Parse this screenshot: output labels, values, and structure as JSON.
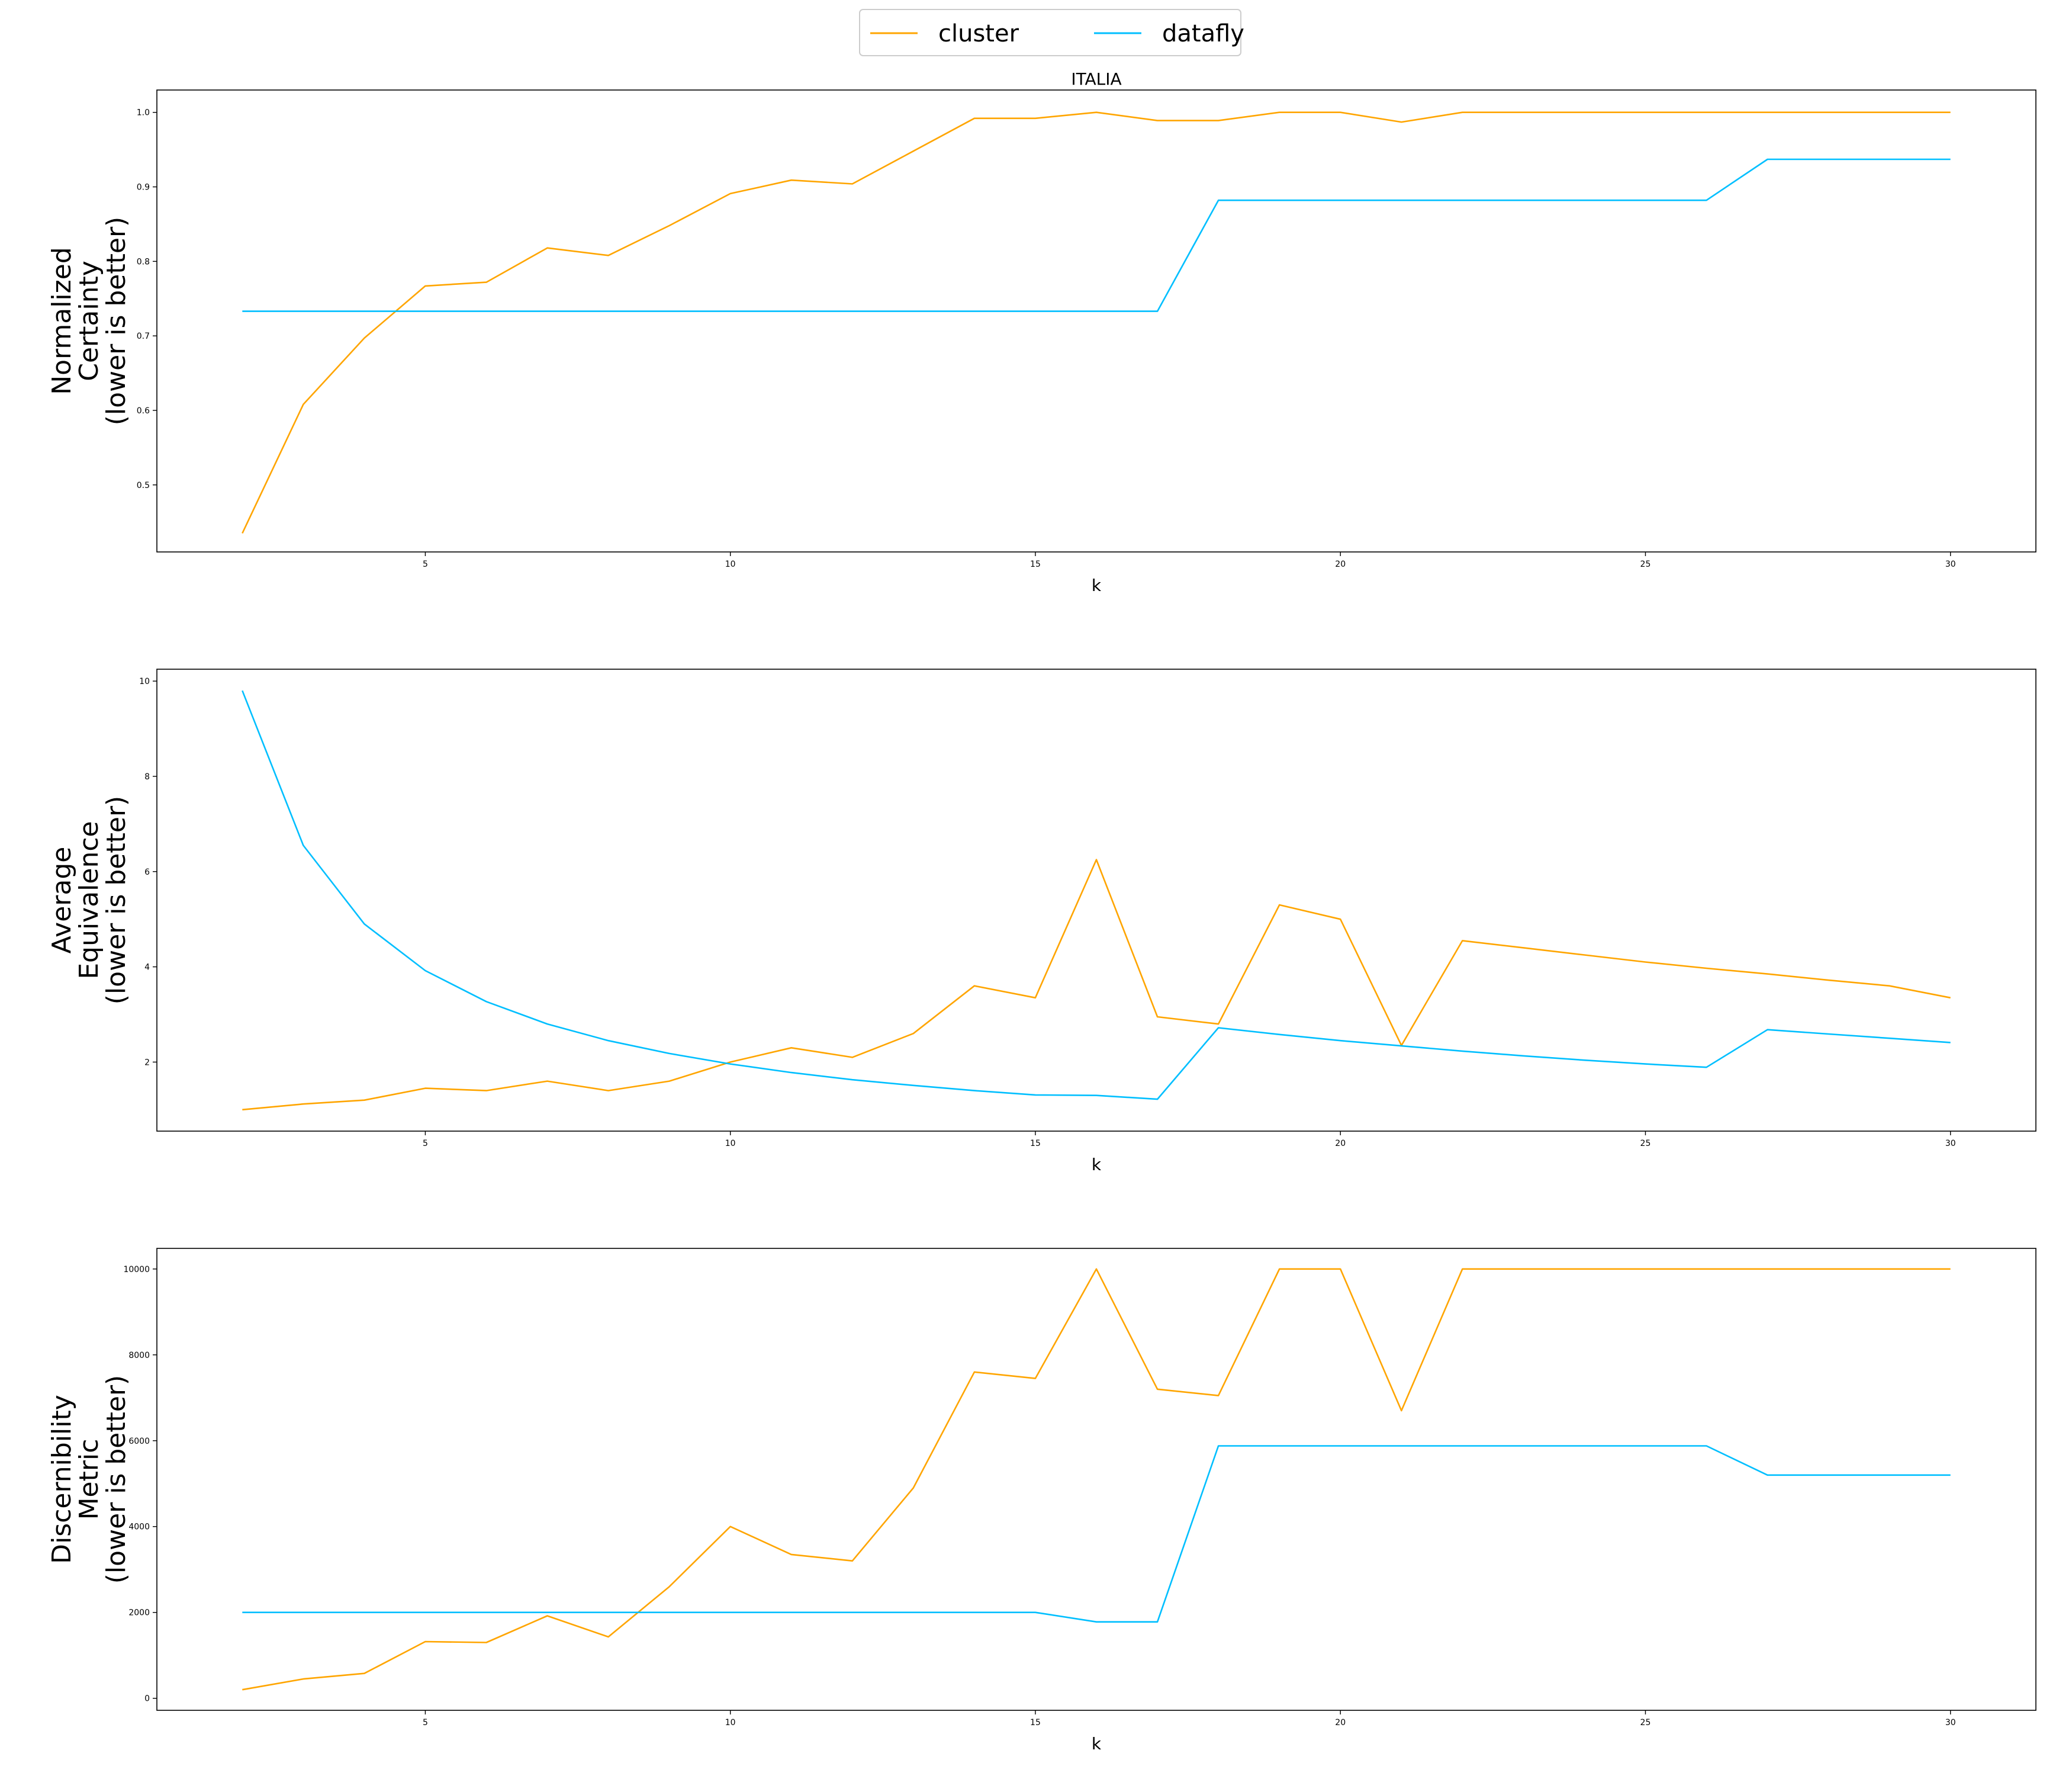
{
  "title": "ITALIA",
  "legend": {
    "placement": "top-center",
    "entries": [
      {
        "label": "cluster",
        "color": "#FFA500"
      },
      {
        "label": "datafly",
        "color": "#00BFFF"
      }
    ]
  },
  "colors": {
    "cluster": "#FFA500",
    "datafly": "#00BFFF"
  },
  "chart_data": [
    {
      "type": "line",
      "title": "ITALIA",
      "xlabel": "k",
      "ylabel": [
        "Normalized",
        "Certainty",
        "(lower is better)"
      ],
      "xlim": [
        0.6,
        31.4
      ],
      "ylim": [
        0.41,
        1.03
      ],
      "xticks": [
        5,
        10,
        15,
        20,
        25,
        30
      ],
      "yticks": [
        0.5,
        0.6,
        0.7,
        0.8,
        0.9,
        1.0
      ],
      "ytick_labels": [
        "0.5",
        "0.6",
        "0.7",
        "0.8",
        "0.9",
        "1.0"
      ],
      "grid": false,
      "x": [
        2,
        3,
        4,
        5,
        6,
        7,
        8,
        9,
        10,
        11,
        12,
        13,
        14,
        15,
        16,
        17,
        18,
        19,
        20,
        21,
        22,
        23,
        24,
        25,
        26,
        27,
        28,
        29,
        30
      ],
      "series": [
        {
          "name": "cluster",
          "color": "#FFA500",
          "values": [
            0.435,
            0.608,
            0.697,
            0.767,
            0.772,
            0.818,
            0.808,
            0.848,
            0.891,
            0.909,
            0.904,
            0.948,
            0.992,
            0.992,
            1.0,
            0.989,
            0.989,
            1.0,
            1.0,
            0.987,
            1.0,
            1.0,
            1.0,
            1.0,
            1.0,
            1.0,
            1.0,
            1.0,
            1.0
          ]
        },
        {
          "name": "datafly",
          "color": "#00BFFF",
          "values": [
            0.733,
            0.733,
            0.733,
            0.733,
            0.733,
            0.733,
            0.733,
            0.733,
            0.733,
            0.733,
            0.733,
            0.733,
            0.733,
            0.733,
            0.733,
            0.733,
            0.882,
            0.882,
            0.882,
            0.882,
            0.882,
            0.882,
            0.882,
            0.882,
            0.882,
            0.937,
            0.937,
            0.937,
            0.937
          ]
        }
      ]
    },
    {
      "type": "line",
      "xlabel": "k",
      "ylabel": [
        "Average",
        "Equivalence",
        "(lower is better)"
      ],
      "xlim": [
        0.6,
        31.4
      ],
      "ylim": [
        0.55,
        10.25
      ],
      "xticks": [
        5,
        10,
        15,
        20,
        25,
        30
      ],
      "yticks": [
        2,
        4,
        6,
        8,
        10
      ],
      "ytick_labels": [
        "2",
        "4",
        "6",
        "8",
        "10"
      ],
      "grid": false,
      "x": [
        2,
        3,
        4,
        5,
        6,
        7,
        8,
        9,
        10,
        11,
        12,
        13,
        14,
        15,
        16,
        17,
        18,
        19,
        20,
        21,
        22,
        23,
        24,
        25,
        26,
        27,
        28,
        29,
        30
      ],
      "series": [
        {
          "name": "cluster",
          "color": "#FFA500",
          "values": [
            1.0,
            1.12,
            1.2,
            1.45,
            1.4,
            1.6,
            1.4,
            1.6,
            2.0,
            2.3,
            2.1,
            2.6,
            3.6,
            3.35,
            6.25,
            2.95,
            2.8,
            5.3,
            5.0,
            2.35,
            4.55,
            4.4,
            4.25,
            4.1,
            3.97,
            3.85,
            3.72,
            3.6,
            3.35
          ]
        },
        {
          "name": "datafly",
          "color": "#00BFFF",
          "values": [
            9.8,
            6.55,
            4.9,
            3.92,
            3.27,
            2.8,
            2.45,
            2.18,
            1.96,
            1.78,
            1.63,
            1.51,
            1.4,
            1.31,
            1.3,
            1.22,
            2.72,
            2.58,
            2.45,
            2.34,
            2.23,
            2.13,
            2.04,
            1.96,
            1.89,
            2.68,
            2.59,
            2.5,
            2.41
          ]
        }
      ]
    },
    {
      "type": "line",
      "xlabel": "k",
      "ylabel": [
        "Discernibility",
        "Metric",
        "(lower is better)"
      ],
      "xlim": [
        0.6,
        31.4
      ],
      "ylim": [
        -280,
        10480
      ],
      "xticks": [
        5,
        10,
        15,
        20,
        25,
        30
      ],
      "yticks": [
        0,
        2000,
        4000,
        6000,
        8000,
        10000
      ],
      "ytick_labels": [
        "0",
        "2000",
        "4000",
        "6000",
        "8000",
        "10000"
      ],
      "grid": false,
      "x": [
        2,
        3,
        4,
        5,
        6,
        7,
        8,
        9,
        10,
        11,
        12,
        13,
        14,
        15,
        16,
        17,
        18,
        19,
        20,
        21,
        22,
        23,
        24,
        25,
        26,
        27,
        28,
        29,
        30
      ],
      "series": [
        {
          "name": "cluster",
          "color": "#FFA500",
          "values": [
            200,
            450,
            580,
            1320,
            1300,
            1920,
            1430,
            2600,
            4000,
            3350,
            3200,
            4900,
            7600,
            7450,
            10000,
            7200,
            7050,
            10000,
            10000,
            6700,
            10000,
            10000,
            10000,
            10000,
            10000,
            10000,
            10000,
            10000,
            10000
          ]
        },
        {
          "name": "datafly",
          "color": "#00BFFF",
          "values": [
            2000,
            2000,
            2000,
            2000,
            2000,
            2000,
            2000,
            2000,
            2000,
            2000,
            2000,
            2000,
            2000,
            2000,
            1780,
            1780,
            5880,
            5880,
            5880,
            5880,
            5880,
            5880,
            5880,
            5880,
            5880,
            5200,
            5200,
            5200,
            5200
          ]
        }
      ]
    }
  ]
}
